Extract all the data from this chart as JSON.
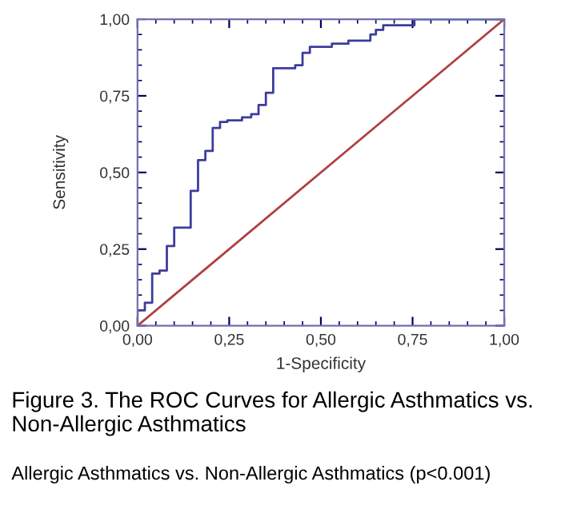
{
  "chart_data": {
    "type": "step",
    "title": "Figure 3. The ROC Curves for Allergic Asthmatics vs. Non-Allergic Asthmatics",
    "xlabel": "1-Specificity",
    "ylabel": "Sensitivity",
    "annotations": [
      "Allergic Asthmatics vs. Non-Allergic Asthmatics (p<0.001)"
    ],
    "series": [
      {
        "color": "#3c3c9c",
        "x": [
          0,
          0,
          0.02,
          0.04,
          0.06,
          0.08,
          0.1,
          0.145,
          0.165,
          0.185,
          0.205,
          0.225,
          0.245,
          0.285,
          0.31,
          0.33,
          0.35,
          0.37,
          0.43,
          0.45,
          0.47,
          0.53,
          0.575,
          0.635,
          0.65,
          0.67,
          0.755,
          0.755,
          1.0
        ],
        "values": [
          0,
          0.05,
          0.075,
          0.17,
          0.18,
          0.26,
          0.32,
          0.44,
          0.54,
          0.57,
          0.645,
          0.665,
          0.67,
          0.68,
          0.69,
          0.72,
          0.76,
          0.84,
          0.85,
          0.89,
          0.91,
          0.92,
          0.93,
          0.95,
          0.965,
          0.98,
          0.99,
          1.0,
          1.0
        ]
      },
      {
        "type": "line",
        "color": "#b04040",
        "x": [
          0,
          1
        ],
        "values": [
          0,
          1
        ]
      }
    ],
    "xlim": [
      0,
      1
    ],
    "ylim": [
      0,
      1
    ],
    "xticks": [
      {
        "value": 0,
        "label": "0,00"
      },
      {
        "value": 0.25,
        "label": "0,25"
      },
      {
        "value": 0.5,
        "label": "0,50"
      },
      {
        "value": 0.75,
        "label": "0,75"
      },
      {
        "value": 1,
        "label": "1,00"
      }
    ],
    "yticks": [
      {
        "value": 0,
        "label": "0,00"
      },
      {
        "value": 0.25,
        "label": "0,25"
      },
      {
        "value": 0.5,
        "label": "0,50"
      },
      {
        "value": 0.75,
        "label": "0,75"
      },
      {
        "value": 1,
        "label": "1,00"
      }
    ],
    "grid": false,
    "legend": false
  }
}
